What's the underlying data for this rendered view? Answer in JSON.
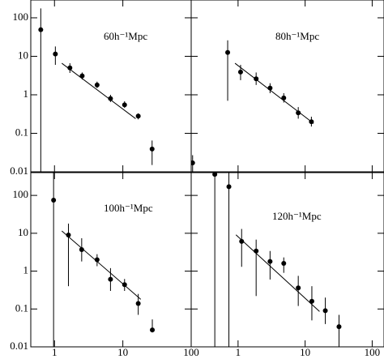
{
  "chart_data": [
    {
      "type": "scatter",
      "title": "60h⁻¹Mpc",
      "log_x": true,
      "log_y": true,
      "x": [
        0.63,
        1.03,
        1.68,
        2.54,
        4.2,
        6.6,
        10.6,
        16.8,
        26.8
      ],
      "y": [
        49,
        11.5,
        5,
        3.1,
        1.8,
        0.8,
        0.55,
        0.28,
        0.039
      ],
      "y_err_low": [
        0.01,
        6,
        3.7,
        2.5,
        1.5,
        0.65,
        0.46,
        0.23,
        0.015
      ],
      "y_err_high": [
        175,
        18,
        6.6,
        3.8,
        2.2,
        1.0,
        0.68,
        0.33,
        0.065
      ],
      "fit_x": [
        1.28,
        15.4
      ],
      "fit_y": [
        6.6,
        0.24
      ],
      "xlim": [
        0.45,
        100
      ],
      "ylim": [
        0.01,
        290
      ],
      "xticks": [
        1,
        10,
        100
      ],
      "yticks": [
        0.01,
        0.1,
        1,
        10,
        100
      ],
      "xtick_labels": false,
      "ytick_labels": true
    },
    {
      "type": "scatter",
      "title": "80h⁻¹Mpc",
      "log_x": true,
      "log_y": true,
      "x": [
        0.21,
        0.7,
        1.09,
        1.86,
        3.0,
        4.8,
        7.9,
        12.4
      ],
      "y": [
        0.017,
        12.6,
        3.9,
        2.6,
        1.5,
        0.83,
        0.34,
        0.2
      ],
      "y_err_low": [
        0.01,
        0.7,
        2.4,
        1.8,
        1.1,
        0.63,
        0.24,
        0.15
      ],
      "y_err_high": [
        0.027,
        26,
        6,
        3.8,
        2.0,
        1.1,
        0.48,
        0.27
      ],
      "fit_x": [
        0.9,
        13.4
      ],
      "fit_y": [
        6.6,
        0.18
      ],
      "xlim": [
        0.2,
        150
      ],
      "ylim": [
        0.01,
        290
      ],
      "xticks": [
        1,
        10,
        100
      ],
      "yticks": [
        0.01,
        0.1,
        1,
        10,
        100
      ],
      "xtick_labels": false,
      "ytick_labels": false
    },
    {
      "type": "scatter",
      "title": "100h⁻¹Mpc",
      "log_x": true,
      "log_y": true,
      "x": [
        0.97,
        1.6,
        2.5,
        4.2,
        6.6,
        10.6,
        16.8,
        27
      ],
      "y": [
        75,
        9,
        3.7,
        2.0,
        0.61,
        0.44,
        0.14,
        0.028
      ],
      "y_err_low": [
        0.01,
        0.4,
        1.8,
        1.35,
        0.3,
        0.3,
        0.07,
        0.024
      ],
      "y_err_high": [
        400,
        18,
        7.4,
        2.8,
        1.2,
        0.62,
        0.25,
        0.053
      ],
      "fit_x": [
        1.28,
        18.3
      ],
      "fit_y": [
        11.5,
        0.18
      ],
      "xlim": [
        0.45,
        100
      ],
      "ylim": [
        0.01,
        400
      ],
      "xticks": [
        1,
        10,
        100
      ],
      "yticks": [
        0.01,
        0.1,
        1,
        10,
        100
      ],
      "xtick_labels": true,
      "ytick_labels": true
    },
    {
      "type": "scatter",
      "title": "120h⁻¹Mpc",
      "log_x": true,
      "log_y": true,
      "x": [
        0.45,
        0.73,
        1.13,
        1.86,
        3.0,
        4.8,
        7.9,
        12.6,
        20,
        32
      ],
      "y": [
        360,
        170,
        6.1,
        3.4,
        1.8,
        1.6,
        0.36,
        0.16,
        0.09,
        0.034
      ],
      "y_err_low": [
        0.01,
        0.01,
        1.3,
        0.22,
        0.6,
        0.9,
        0.12,
        0.05,
        0.04,
        0.01
      ],
      "y_err_high": [
        400,
        400,
        13,
        6.8,
        3.4,
        2.3,
        0.75,
        0.4,
        0.2,
        0.07
      ],
      "fit_x": [
        0.93,
        16.4
      ],
      "fit_y": [
        9.1,
        0.086
      ],
      "xlim": [
        0.2,
        150
      ],
      "ylim": [
        0.01,
        400
      ],
      "xticks": [
        1,
        10,
        100
      ],
      "yticks": [
        0.01,
        0.1,
        1,
        10,
        100
      ],
      "xtick_labels": true,
      "ytick_labels": false
    }
  ]
}
